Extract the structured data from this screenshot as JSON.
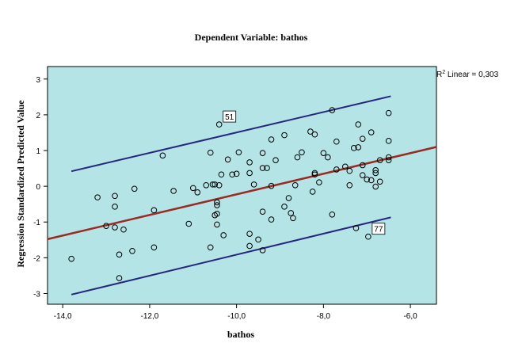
{
  "chart_data": {
    "type": "scatter",
    "title": "Dependent Variable: bathos",
    "xlabel": "bathos",
    "ylabel": "Regression Standardized Predicted Value",
    "xlim": [
      -14.35,
      -5.4
    ],
    "ylim": [
      -3.3,
      3.35
    ],
    "x_ticks": [
      -14,
      -12,
      -10,
      -8,
      -6
    ],
    "x_tick_labels": [
      "-14,0",
      "-12,0",
      "-10,0",
      "-8,0",
      "-6,0"
    ],
    "y_ticks": [
      -3,
      -2,
      -1,
      0,
      1,
      2,
      3
    ],
    "y_tick_labels": [
      "-3",
      "-2",
      "-1",
      "0",
      "1",
      "2",
      "3"
    ],
    "r2_label": "R",
    "r2_superscript": "2",
    "r2_text": " Linear = 0,303",
    "colors": {
      "plot_background": "#b4e4e6",
      "fit_line": "#9b2a22",
      "ci_line": "#26267e",
      "points": "#000000"
    },
    "fit_line": {
      "x": [
        -14.35,
        -5.4
      ],
      "y": [
        -1.48,
        1.1
      ]
    },
    "ci_upper": {
      "x": [
        -13.8,
        -6.45
      ],
      "y": [
        0.42,
        2.52
      ]
    },
    "ci_lower": {
      "x": [
        -13.8,
        -6.45
      ],
      "y": [
        -3.03,
        -0.87
      ]
    },
    "labeled_points": [
      {
        "label": "51",
        "x": -10.4,
        "y": 1.73
      },
      {
        "label": "77",
        "x": -6.97,
        "y": -1.41
      }
    ],
    "points": [
      [
        -13.8,
        -2.03
      ],
      [
        -13.2,
        -0.31
      ],
      [
        -13.0,
        -1.11
      ],
      [
        -12.8,
        -0.27
      ],
      [
        -12.8,
        -0.57
      ],
      [
        -12.8,
        -1.15
      ],
      [
        -12.7,
        -1.91
      ],
      [
        -12.7,
        -2.57
      ],
      [
        -12.6,
        -1.21
      ],
      [
        -12.4,
        -1.81
      ],
      [
        -12.35,
        -0.07
      ],
      [
        -11.9,
        -0.67
      ],
      [
        -11.9,
        -1.71
      ],
      [
        -11.7,
        0.86
      ],
      [
        -11.45,
        -0.13
      ],
      [
        -11.1,
        -1.05
      ],
      [
        -11.0,
        -0.05
      ],
      [
        -10.9,
        -0.17
      ],
      [
        -10.7,
        0.03
      ],
      [
        -10.6,
        0.94
      ],
      [
        -10.6,
        -1.71
      ],
      [
        -10.55,
        0.05
      ],
      [
        -10.5,
        -0.81
      ],
      [
        -10.5,
        0.05
      ],
      [
        -10.45,
        -0.45
      ],
      [
        -10.45,
        -0.53
      ],
      [
        -10.45,
        -0.77
      ],
      [
        -10.45,
        -1.07
      ],
      [
        -10.4,
        0.03
      ],
      [
        -10.35,
        0.33
      ],
      [
        -10.3,
        -1.37
      ],
      [
        -10.2,
        0.75
      ],
      [
        -10.1,
        0.33
      ],
      [
        -10.0,
        0.35
      ],
      [
        -9.95,
        0.95
      ],
      [
        -9.7,
        0.67
      ],
      [
        -9.7,
        0.37
      ],
      [
        -9.7,
        -1.33
      ],
      [
        -9.7,
        -1.67
      ],
      [
        -9.6,
        0.05
      ],
      [
        -9.5,
        -1.49
      ],
      [
        -9.4,
        0.93
      ],
      [
        -9.4,
        0.51
      ],
      [
        -9.4,
        -0.71
      ],
      [
        -9.4,
        -1.79
      ],
      [
        -9.3,
        0.51
      ],
      [
        -9.2,
        1.31
      ],
      [
        -9.2,
        0.01
      ],
      [
        -9.2,
        -0.93
      ],
      [
        -9.1,
        0.73
      ],
      [
        -8.9,
        1.43
      ],
      [
        -8.9,
        -0.57
      ],
      [
        -8.8,
        -0.33
      ],
      [
        -8.75,
        -0.75
      ],
      [
        -8.7,
        -0.89
      ],
      [
        -8.65,
        0.03
      ],
      [
        -8.6,
        0.81
      ],
      [
        -8.5,
        0.95
      ],
      [
        -8.3,
        1.53
      ],
      [
        -8.25,
        -0.15
      ],
      [
        -8.2,
        1.45
      ],
      [
        -8.2,
        0.37
      ],
      [
        -8.2,
        0.33
      ],
      [
        -8.1,
        0.11
      ],
      [
        -8.0,
        0.93
      ],
      [
        -7.9,
        0.81
      ],
      [
        -7.8,
        2.13
      ],
      [
        -7.8,
        -0.79
      ],
      [
        -7.7,
        1.25
      ],
      [
        -7.7,
        0.47
      ],
      [
        -7.5,
        0.55
      ],
      [
        -7.4,
        0.43
      ],
      [
        -7.4,
        0.03
      ],
      [
        -7.3,
        1.07
      ],
      [
        -7.25,
        -1.17
      ],
      [
        -7.2,
        1.73
      ],
      [
        -7.2,
        1.09
      ],
      [
        -7.1,
        1.33
      ],
      [
        -7.1,
        0.59
      ],
      [
        -7.1,
        0.31
      ],
      [
        -7.0,
        0.19
      ],
      [
        -6.9,
        1.51
      ],
      [
        -6.9,
        0.17
      ],
      [
        -6.8,
        0.45
      ],
      [
        -6.8,
        0.37
      ],
      [
        -6.8,
        -0.01
      ],
      [
        -6.7,
        0.73
      ],
      [
        -6.7,
        0.13
      ],
      [
        -6.5,
        2.05
      ],
      [
        -6.5,
        1.27
      ],
      [
        -6.5,
        0.81
      ],
      [
        -6.5,
        0.73
      ],
      [
        -10.4,
        1.73
      ],
      [
        -6.97,
        -1.41
      ]
    ]
  }
}
